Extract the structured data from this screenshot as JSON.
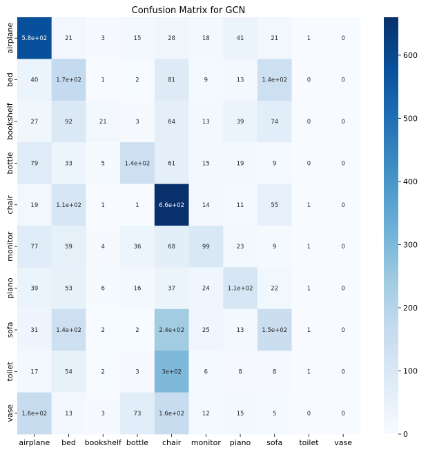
{
  "chart_data": {
    "type": "heatmap",
    "title": "Confusion Matrix for GCN",
    "xlabel": "",
    "ylabel": "",
    "x_categories": [
      "airplane",
      "bed",
      "bookshelf",
      "bottle",
      "chair",
      "monitor",
      "piano",
      "sofa",
      "toilet",
      "vase"
    ],
    "y_categories": [
      "airplane",
      "bed",
      "bookshelf",
      "bottle",
      "chair",
      "monitor",
      "piano",
      "sofa",
      "toilet",
      "vase"
    ],
    "values": [
      [
        580,
        21,
        3,
        15,
        28,
        18,
        41,
        21,
        1,
        0
      ],
      [
        40,
        170,
        1,
        2,
        81,
        9,
        13,
        140,
        0,
        0
      ],
      [
        27,
        92,
        21,
        3,
        64,
        13,
        39,
        74,
        0,
        0
      ],
      [
        79,
        33,
        5,
        140,
        61,
        15,
        19,
        9,
        0,
        0
      ],
      [
        19,
        110,
        1,
        1,
        660,
        14,
        11,
        55,
        1,
        0
      ],
      [
        77,
        59,
        4,
        36,
        68,
        99,
        23,
        9,
        1,
        0
      ],
      [
        39,
        53,
        6,
        16,
        37,
        24,
        110,
        22,
        1,
        0
      ],
      [
        31,
        140,
        2,
        2,
        240,
        25,
        13,
        150,
        1,
        0
      ],
      [
        17,
        54,
        2,
        3,
        300,
        6,
        8,
        8,
        1,
        0
      ],
      [
        160,
        13,
        3,
        73,
        160,
        12,
        15,
        5,
        0,
        0
      ]
    ],
    "annotations": [
      [
        "5.8e+02",
        "21",
        "3",
        "15",
        "28",
        "18",
        "41",
        "21",
        "1",
        "0"
      ],
      [
        "40",
        "1.7e+02",
        "1",
        "2",
        "81",
        "9",
        "13",
        "1.4e+02",
        "0",
        "0"
      ],
      [
        "27",
        "92",
        "21",
        "3",
        "64",
        "13",
        "39",
        "74",
        "0",
        "0"
      ],
      [
        "79",
        "33",
        "5",
        "1.4e+02",
        "61",
        "15",
        "19",
        "9",
        "0",
        "0"
      ],
      [
        "19",
        "1.1e+02",
        "1",
        "1",
        "6.6e+02",
        "14",
        "11",
        "55",
        "1",
        "0"
      ],
      [
        "77",
        "59",
        "4",
        "36",
        "68",
        "99",
        "23",
        "9",
        "1",
        "0"
      ],
      [
        "39",
        "53",
        "6",
        "16",
        "37",
        "24",
        "1.1e+02",
        "22",
        "1",
        "0"
      ],
      [
        "31",
        "1.4e+02",
        "2",
        "2",
        "2.4e+02",
        "25",
        "13",
        "1.5e+02",
        "1",
        "0"
      ],
      [
        "17",
        "54",
        "2",
        "3",
        "3e+02",
        "6",
        "8",
        "8",
        "1",
        "0"
      ],
      [
        "1.6e+02",
        "13",
        "3",
        "73",
        "1.6e+02",
        "12",
        "15",
        "5",
        "0",
        "0"
      ]
    ],
    "colorbar": {
      "range": [
        0,
        660
      ],
      "ticks": [
        0,
        100,
        200,
        300,
        400,
        500,
        600
      ],
      "colormap": "Blues",
      "colors": [
        "#f7fbff",
        "#deebf7",
        "#c6dbef",
        "#9ecae1",
        "#6baed6",
        "#4292c6",
        "#2171b5",
        "#08519c",
        "#08306b"
      ]
    },
    "grid": false,
    "legend": "colorbar-right"
  }
}
